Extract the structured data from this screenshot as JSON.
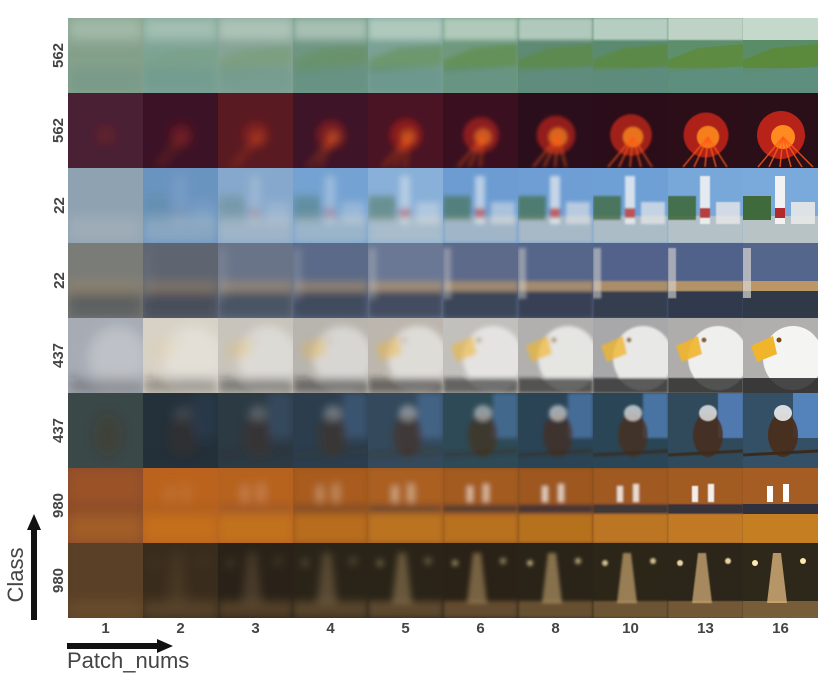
{
  "x_axis_title": "Patch_nums",
  "y_axis_title": "Class",
  "patch_nums": [
    "1",
    "2",
    "3",
    "4",
    "5",
    "6",
    "8",
    "10",
    "13",
    "16"
  ],
  "class_labels": [
    "562",
    "562",
    "22",
    "22",
    "437",
    "437",
    "980",
    "980"
  ],
  "rows": [
    {
      "subject": "coastal-cliff",
      "colors": [
        "#84a08b",
        "#7ea495",
        "#86a496",
        "#6f9683",
        "#7aa195",
        "#6f997f",
        "#5f8a74",
        "#5a8a70",
        "#5e8f6d",
        "#5a8c68"
      ]
    },
    {
      "subject": "volcano-lava",
      "colors": [
        "#4a2035",
        "#3c1226",
        "#5a1a22",
        "#3e1428",
        "#4a1424",
        "#3a1020",
        "#2a0e1c",
        "#2a0d18",
        "#2c0e18",
        "#2a0e18"
      ]
    },
    {
      "subject": "lighthouse",
      "colors": [
        "#8ea2b2",
        "#6a94c0",
        "#86a8cc",
        "#74a2d2",
        "#88b0d8",
        "#6c9cd2",
        "#6e9ed4",
        "#6ea0d6",
        "#78a8da",
        "#7aaadc"
      ]
    },
    {
      "subject": "lighthouse-dusk",
      "colors": [
        "#7a7c78",
        "#5e6470",
        "#6a7488",
        "#5a6a88",
        "#6a7896",
        "#5e6a8a",
        "#56668a",
        "#52628a",
        "#50628a",
        "#54668c"
      ]
    },
    {
      "subject": "bald-eagle",
      "colors": [
        "#a6abb4",
        "#d8d2c6",
        "#c8c4bc",
        "#b8b4ae",
        "#bcb6ae",
        "#c2c0bc",
        "#b2b0ae",
        "#a8a8aa",
        "#aeadac",
        "#b0afae"
      ]
    },
    {
      "subject": "eagle-perched",
      "colors": [
        "#3a4848",
        "#24303a",
        "#2c3a44",
        "#2c3e4e",
        "#344a5c",
        "#2e4a56",
        "#2a4456",
        "#2a4656",
        "#304a5c",
        "#345066"
      ]
    },
    {
      "subject": "fountain-sunset",
      "colors": [
        "#8a4a2a",
        "#b8601c",
        "#b2601e",
        "#9a5418",
        "#9a5a1e",
        "#8a4e1c",
        "#7a461c",
        "#7a4a22",
        "#7c4c26",
        "#7e4e28"
      ]
    },
    {
      "subject": "fountain-night",
      "colors": [
        "#5a4026",
        "#3a2c1c",
        "#2a2218",
        "#2a2418",
        "#2a2418",
        "#2a2216",
        "#2a2418",
        "#2c2618",
        "#2c261a",
        "#2e281a"
      ]
    }
  ]
}
